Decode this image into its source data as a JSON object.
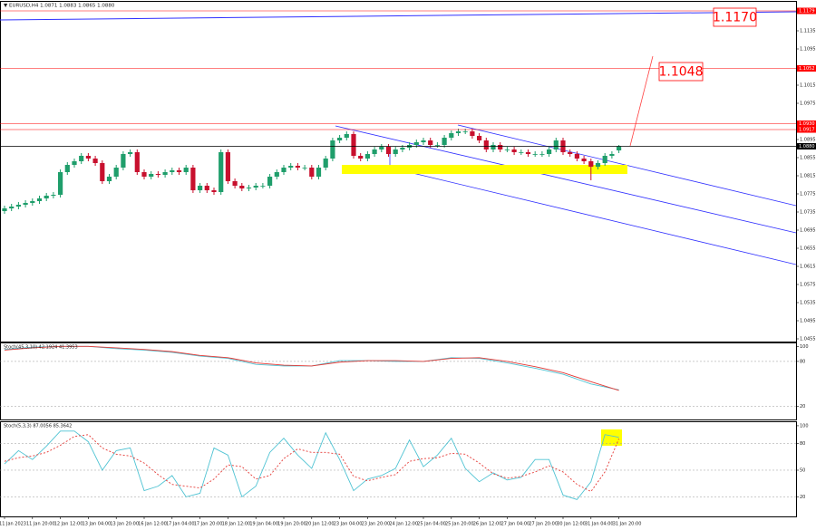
{
  "chart_data": [
    {
      "type": "candlestick",
      "title": "▼ EURUSD,H4 1.0871 1.0883 1.0865 1.0880",
      "categories": [
        "11 Jan 2023",
        null,
        null,
        null,
        "11 Jan 20:00",
        null,
        null,
        null,
        "12 Jan 12:00",
        null,
        null,
        null,
        "13 Jan 04:00",
        null,
        null,
        null,
        "13 Jan 20:00",
        null,
        null,
        null,
        "16 Jan 12:00",
        null,
        null,
        null,
        "17 Jan 04:00",
        null,
        null,
        null,
        "17 Jan 20:00",
        null,
        null,
        null,
        "18 Jan 12:00",
        null,
        null,
        null,
        "19 Jan 04:00",
        null,
        null,
        null,
        "19 Jan 20:00",
        null,
        null,
        null,
        "20 Jan 12:00",
        null,
        null,
        null,
        "23 Jan 04:00",
        null,
        null,
        null,
        "23 Jan 20:00",
        null,
        null,
        null,
        "24 Jan 12:00",
        null,
        null,
        null,
        "25 Jan 04:00",
        null,
        null,
        null,
        "25 Jan 20:00",
        null,
        null,
        null,
        "26 Jan 12:00",
        null,
        null,
        null,
        "27 Jan 04:00",
        null,
        null,
        null,
        "27 Jan 20:00",
        null,
        null,
        null,
        "30 Jan 12:00",
        null,
        null,
        null,
        "31 Jan 04:00",
        null,
        null,
        null,
        "31 Jan 20:00"
      ],
      "open": [
        1.0737,
        1.0743,
        1.0747,
        1.0751,
        1.0755,
        1.0759,
        1.0765,
        1.0771,
        1.0773,
        1.0823,
        1.0839,
        1.0847,
        1.0859,
        1.0853,
        1.0843,
        1.0803,
        1.0813,
        1.0833,
        1.0863,
        1.0867,
        1.0823,
        1.0813,
        1.0819,
        1.0817,
        1.0823,
        1.0827,
        1.0823,
        1.0833,
        1.0783,
        1.0793,
        1.0783,
        1.0779,
        1.0867,
        1.0803,
        1.0793,
        1.0787,
        1.0789,
        1.0793,
        1.0793,
        1.0813,
        1.0823,
        1.0833,
        1.0837,
        1.0833,
        1.0833,
        1.0813,
        1.0833,
        1.0853,
        1.0893,
        1.0899,
        1.0907,
        1.0859,
        1.0853,
        1.0863,
        1.0873,
        1.0879,
        1.0863,
        1.0873,
        1.0877,
        1.0883,
        1.0889,
        1.0893,
        1.0883,
        1.0883,
        1.0899,
        1.0909,
        1.0913,
        1.0913,
        1.0903,
        1.0893,
        1.0873,
        1.0883,
        1.0873,
        1.0873,
        1.0867,
        1.0867,
        1.0863,
        1.0863,
        1.0863,
        1.0873,
        1.0893,
        1.0867,
        1.0863,
        1.0853,
        1.0847,
        1.0835,
        1.0843,
        1.0859,
        1.0871
      ],
      "high": [
        1.0749,
        1.0753,
        1.0757,
        1.0761,
        1.0765,
        1.0771,
        1.0777,
        1.0779,
        1.0829,
        1.0845,
        1.0853,
        1.0865,
        1.0865,
        1.0859,
        1.0849,
        1.0819,
        1.0839,
        1.0869,
        1.0873,
        1.0873,
        1.0829,
        1.0825,
        1.0825,
        1.0829,
        1.0833,
        1.0833,
        1.0839,
        1.0839,
        1.0799,
        1.0799,
        1.0789,
        1.0873,
        1.0873,
        1.0809,
        1.0799,
        1.0795,
        1.0799,
        1.0799,
        1.0819,
        1.0829,
        1.0839,
        1.0843,
        1.0843,
        1.0839,
        1.0839,
        1.0839,
        1.0859,
        1.0899,
        1.0905,
        1.0913,
        1.0913,
        1.0865,
        1.0869,
        1.0879,
        1.0885,
        1.0885,
        1.0879,
        1.0883,
        1.0889,
        1.0895,
        1.0899,
        1.0899,
        1.0889,
        1.0905,
        1.0915,
        1.0919,
        1.0919,
        1.0919,
        1.0909,
        1.0899,
        1.0889,
        1.0889,
        1.0879,
        1.0879,
        1.0873,
        1.0873,
        1.0869,
        1.0869,
        1.0879,
        1.0899,
        1.0899,
        1.0873,
        1.0869,
        1.0859,
        1.0853,
        1.0849,
        1.0865,
        1.0869,
        1.0883
      ],
      "low": [
        1.0731,
        1.0737,
        1.0741,
        1.0745,
        1.0749,
        1.0753,
        1.0759,
        1.0765,
        1.0767,
        1.0817,
        1.0833,
        1.0841,
        1.0847,
        1.0837,
        1.0797,
        1.0797,
        1.0807,
        1.0827,
        1.0857,
        1.0817,
        1.0807,
        1.0807,
        1.0811,
        1.0811,
        1.0817,
        1.0817,
        1.0817,
        1.0777,
        1.0777,
        1.0777,
        1.0773,
        1.0773,
        1.0797,
        1.0787,
        1.0781,
        1.0781,
        1.0783,
        1.0787,
        1.0787,
        1.0807,
        1.0817,
        1.0827,
        1.0827,
        1.0827,
        1.0807,
        1.0807,
        1.0827,
        1.0847,
        1.0887,
        1.0893,
        1.0853,
        1.0847,
        1.0847,
        1.0857,
        1.0867,
        1.0857,
        1.0857,
        1.0867,
        1.0871,
        1.0877,
        1.0883,
        1.0877,
        1.0877,
        1.0877,
        1.0893,
        1.0903,
        1.0907,
        1.0897,
        1.0887,
        1.0867,
        1.0867,
        1.0867,
        1.0867,
        1.0861,
        1.0861,
        1.0857,
        1.0857,
        1.0857,
        1.0857,
        1.0867,
        1.0861,
        1.0857,
        1.0847,
        1.0841,
        1.0805,
        1.0829,
        1.0837,
        1.0853,
        1.0865
      ],
      "close": [
        1.0743,
        1.0747,
        1.0751,
        1.0755,
        1.0759,
        1.0765,
        1.0771,
        1.0773,
        1.0823,
        1.0839,
        1.0847,
        1.0859,
        1.0853,
        1.0843,
        1.0803,
        1.0813,
        1.0833,
        1.0863,
        1.0867,
        1.0823,
        1.0813,
        1.0819,
        1.0817,
        1.0823,
        1.0827,
        1.0823,
        1.0833,
        1.0783,
        1.0793,
        1.0783,
        1.0779,
        1.0867,
        1.0803,
        1.0793,
        1.0787,
        1.0789,
        1.0793,
        1.0793,
        1.0813,
        1.0823,
        1.0833,
        1.0837,
        1.0833,
        1.0833,
        1.0813,
        1.0833,
        1.0853,
        1.0893,
        1.0899,
        1.0907,
        1.0859,
        1.0853,
        1.0863,
        1.0873,
        1.0879,
        1.0863,
        1.0873,
        1.0877,
        1.0883,
        1.0889,
        1.0893,
        1.0883,
        1.0883,
        1.0899,
        1.0909,
        1.0913,
        1.0913,
        1.0903,
        1.0893,
        1.0873,
        1.0883,
        1.0873,
        1.0873,
        1.0867,
        1.0867,
        1.0863,
        1.0863,
        1.0863,
        1.0873,
        1.0893,
        1.0867,
        1.0863,
        1.0853,
        1.0847,
        1.0835,
        1.0843,
        1.0859,
        1.0863,
        1.088
      ],
      "up_color": "#1f9e6b",
      "down_color": "#c8102e",
      "ylim": [
        1.0449,
        1.1197
      ],
      "yticks": [
        1.1135,
        1.1095,
        1.1015,
        1.0975,
        1.0895,
        1.0855,
        1.0815,
        1.0775,
        1.0735,
        1.0695,
        1.0655,
        1.0615,
        1.0575,
        1.0535,
        1.0495,
        1.0455
      ],
      "levels": [
        {
          "value": 1.1179,
          "color": "#ff0000"
        },
        {
          "value": 1.1052,
          "color": "#ff0000"
        },
        {
          "value": 1.093,
          "label": "1.0930",
          "color": "#ff0000"
        },
        {
          "value": 1.0917,
          "color": "#ff0000"
        },
        {
          "value": 1.088,
          "label": "1.0880",
          "color": "#000000"
        }
      ],
      "annotations": [
        "1.1170",
        "1.1048"
      ]
    },
    {
      "type": "line",
      "title": "Stoch(45,3,10) 42.1924 41.3953",
      "x": [
        0,
        4,
        8,
        12,
        16,
        20,
        24,
        28,
        32,
        36,
        40,
        44,
        48,
        52,
        56,
        60,
        64,
        68,
        72,
        76,
        80,
        84,
        88
      ],
      "series": [
        {
          "color": "#4fc3d3",
          "values": [
            96,
            99,
            100,
            100,
            97,
            95,
            92,
            87,
            84,
            76,
            74,
            74,
            81,
            81,
            80,
            80,
            85,
            84,
            78,
            71,
            63,
            50,
            42.1924
          ]
        },
        {
          "color": "#e53935",
          "values": [
            95,
            98,
            100,
            100,
            98,
            96,
            93,
            88,
            85,
            78,
            75,
            74,
            79,
            81,
            81,
            80,
            84,
            85,
            80,
            73,
            65,
            53,
            41.3953
          ]
        }
      ],
      "ylim": [
        4,
        104
      ],
      "yticks": [
        20,
        80,
        100
      ]
    },
    {
      "type": "line",
      "title": "Stoch(5,3,3) 87.0056 85.3642",
      "x": [
        0,
        2,
        4,
        6,
        8,
        10,
        12,
        14,
        16,
        18,
        20,
        22,
        24,
        26,
        28,
        30,
        32,
        34,
        36,
        38,
        40,
        42,
        44,
        46,
        48,
        50,
        52,
        54,
        56,
        58,
        60,
        62,
        64,
        66,
        68,
        70,
        72,
        74,
        76,
        78,
        80,
        82,
        84,
        86,
        88
      ],
      "series": [
        {
          "color": "#4fc3d3",
          "values": [
            57,
            72,
            62,
            77,
            94,
            94,
            82,
            50,
            72,
            75,
            27,
            32,
            44,
            20,
            24,
            75,
            67,
            20,
            32,
            70,
            86,
            67,
            52,
            92,
            62,
            27,
            40,
            44,
            52,
            84,
            54,
            67,
            86,
            52,
            37,
            47,
            39,
            42,
            62,
            62,
            22,
            17,
            37,
            90,
            87.0056
          ]
        },
        {
          "color": "#e53935",
          "dashed": true,
          "values": [
            60,
            64,
            66,
            70,
            78,
            88,
            90,
            75,
            68,
            66,
            58,
            45,
            34,
            32,
            30,
            40,
            56,
            54,
            40,
            44,
            63,
            74,
            70,
            70,
            68,
            43,
            38,
            42,
            45,
            60,
            63,
            64,
            69,
            68,
            58,
            46,
            41,
            43,
            48,
            55,
            48,
            34,
            26,
            48,
            85.3642
          ]
        }
      ],
      "ylim": [
        -2,
        104
      ],
      "yticks": [
        20,
        50,
        80,
        100
      ]
    }
  ]
}
